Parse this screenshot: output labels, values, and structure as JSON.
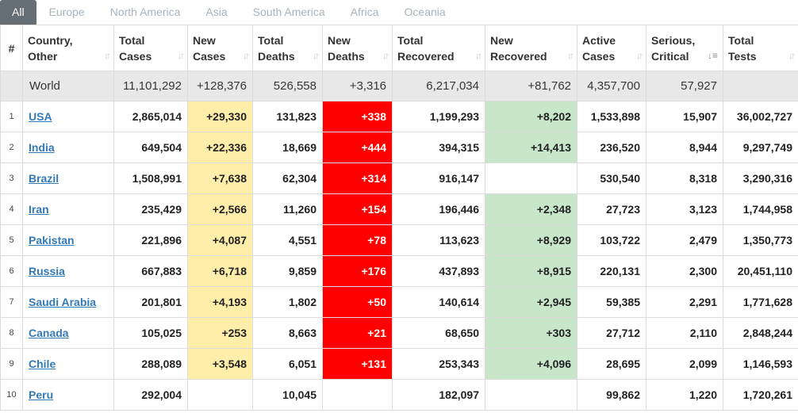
{
  "tabs": [
    "All",
    "Europe",
    "North America",
    "Asia",
    "South America",
    "Africa",
    "Oceania"
  ],
  "headers": {
    "idx": "#",
    "country": [
      "Country,",
      "Other"
    ],
    "total_cases": [
      "Total",
      "Cases"
    ],
    "new_cases": [
      "New",
      "Cases"
    ],
    "total_deaths": [
      "Total",
      "Deaths"
    ],
    "new_deaths": [
      "New",
      "Deaths"
    ],
    "total_recovered": [
      "Total",
      "Recovered"
    ],
    "new_recovered": [
      "New",
      "Recovered"
    ],
    "active_cases": [
      "Active",
      "Cases"
    ],
    "serious_critical": [
      "Serious,",
      "Critical"
    ],
    "total_tests": [
      "Total",
      "Tests"
    ]
  },
  "world": {
    "country": "World",
    "total_cases": "11,101,292",
    "new_cases": "+128,376",
    "total_deaths": "526,558",
    "new_deaths": "+3,316",
    "total_recovered": "6,217,034",
    "new_recovered": "+81,762",
    "active_cases": "4,357,700",
    "serious_critical": "57,927",
    "total_tests": ""
  },
  "rows": [
    {
      "idx": "1",
      "country": "USA",
      "total_cases": "2,865,014",
      "new_cases": "+29,330",
      "total_deaths": "131,823",
      "new_deaths": "+338",
      "total_recovered": "1,199,293",
      "new_recovered": "+8,202",
      "active_cases": "1,533,898",
      "serious_critical": "15,907",
      "total_tests": "36,002,727"
    },
    {
      "idx": "2",
      "country": "India",
      "total_cases": "649,504",
      "new_cases": "+22,336",
      "total_deaths": "18,669",
      "new_deaths": "+444",
      "total_recovered": "394,315",
      "new_recovered": "+14,413",
      "active_cases": "236,520",
      "serious_critical": "8,944",
      "total_tests": "9,297,749"
    },
    {
      "idx": "3",
      "country": "Brazil",
      "total_cases": "1,508,991",
      "new_cases": "+7,638",
      "total_deaths": "62,304",
      "new_deaths": "+314",
      "total_recovered": "916,147",
      "new_recovered": "",
      "active_cases": "530,540",
      "serious_critical": "8,318",
      "total_tests": "3,290,316"
    },
    {
      "idx": "4",
      "country": "Iran",
      "total_cases": "235,429",
      "new_cases": "+2,566",
      "total_deaths": "11,260",
      "new_deaths": "+154",
      "total_recovered": "196,446",
      "new_recovered": "+2,348",
      "active_cases": "27,723",
      "serious_critical": "3,123",
      "total_tests": "1,744,958"
    },
    {
      "idx": "5",
      "country": "Pakistan",
      "total_cases": "221,896",
      "new_cases": "+4,087",
      "total_deaths": "4,551",
      "new_deaths": "+78",
      "total_recovered": "113,623",
      "new_recovered": "+8,929",
      "active_cases": "103,722",
      "serious_critical": "2,479",
      "total_tests": "1,350,773"
    },
    {
      "idx": "6",
      "country": "Russia",
      "total_cases": "667,883",
      "new_cases": "+6,718",
      "total_deaths": "9,859",
      "new_deaths": "+176",
      "total_recovered": "437,893",
      "new_recovered": "+8,915",
      "active_cases": "220,131",
      "serious_critical": "2,300",
      "total_tests": "20,451,110"
    },
    {
      "idx": "7",
      "country": "Saudi Arabia",
      "total_cases": "201,801",
      "new_cases": "+4,193",
      "total_deaths": "1,802",
      "new_deaths": "+50",
      "total_recovered": "140,614",
      "new_recovered": "+2,945",
      "active_cases": "59,385",
      "serious_critical": "2,291",
      "total_tests": "1,771,628"
    },
    {
      "idx": "8",
      "country": "Canada",
      "total_cases": "105,025",
      "new_cases": "+253",
      "total_deaths": "8,663",
      "new_deaths": "+21",
      "total_recovered": "68,650",
      "new_recovered": "+303",
      "active_cases": "27,712",
      "serious_critical": "2,110",
      "total_tests": "2,848,244"
    },
    {
      "idx": "9",
      "country": "Chile",
      "total_cases": "288,089",
      "new_cases": "+3,548",
      "total_deaths": "6,051",
      "new_deaths": "+131",
      "total_recovered": "253,343",
      "new_recovered": "+4,096",
      "active_cases": "28,695",
      "serious_critical": "2,099",
      "total_tests": "1,146,593"
    },
    {
      "idx": "10",
      "country": "Peru",
      "total_cases": "292,004",
      "new_cases": "",
      "total_deaths": "10,045",
      "new_deaths": "",
      "total_recovered": "182,097",
      "new_recovered": "",
      "active_cases": "99,862",
      "serious_critical": "1,220",
      "total_tests": "1,720,261"
    }
  ],
  "colors": {
    "new_cases_highlight": "#ffeeaa",
    "new_deaths_highlight": "#ff0000",
    "new_recovered_highlight": "#c8e6c9",
    "active_tab": "#656d75",
    "link": "#337ab7"
  },
  "icons": {
    "sort": "sort-arrows-icon",
    "sort_active": "sort-descending-icon"
  }
}
